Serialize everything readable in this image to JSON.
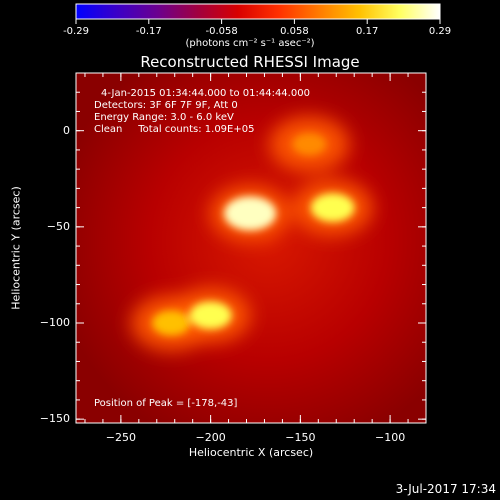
{
  "chart_data": {
    "type": "heatmap",
    "title": "Reconstructed RHESSI Image",
    "xlabel": "Heliocentric X (arcsec)",
    "ylabel": "Heliocentric Y (arcsec)",
    "xlim": [
      -275,
      -80
    ],
    "ylim": [
      -152,
      30
    ],
    "x_ticks": [
      -250,
      -200,
      -150,
      -100
    ],
    "y_ticks": [
      0,
      -50,
      -100,
      -150
    ],
    "colorbar": {
      "unit_label": "(photons cm⁻² s⁻¹ asec⁻²)",
      "range": [
        -0.29,
        0.29
      ],
      "ticks": [
        "-0.29",
        "-0.17",
        "-0.058",
        "0.058",
        "0.17",
        "0.29"
      ],
      "colors": [
        "#0000ff",
        "#3a00c8",
        "#6a0090",
        "#a00040",
        "#d80000",
        "#ff3000",
        "#ff7a00",
        "#ffc000",
        "#ffff60",
        "#ffffff"
      ]
    },
    "annotations": [
      "4-Jan-2015 01:34:44.000 to 01:44:44.000",
      "Detectors: 3F 6F 7F 9F, Att 0",
      "Energy Range: 3.0 - 6.0 keV",
      "Clean     Total counts: 1.09E+05"
    ],
    "peak_label": "Position of Peak = [-178,-43]",
    "sources": [
      {
        "x": -178,
        "y": -43,
        "peak": 0.29
      },
      {
        "x": -132,
        "y": -40,
        "peak": 0.23
      },
      {
        "x": -145,
        "y": -7,
        "peak": 0.16
      },
      {
        "x": -200,
        "y": -96,
        "peak": 0.22
      },
      {
        "x": -222,
        "y": -100,
        "peak": 0.19
      }
    ]
  },
  "footer": {
    "date": "3-Jul-2017 17:34"
  }
}
